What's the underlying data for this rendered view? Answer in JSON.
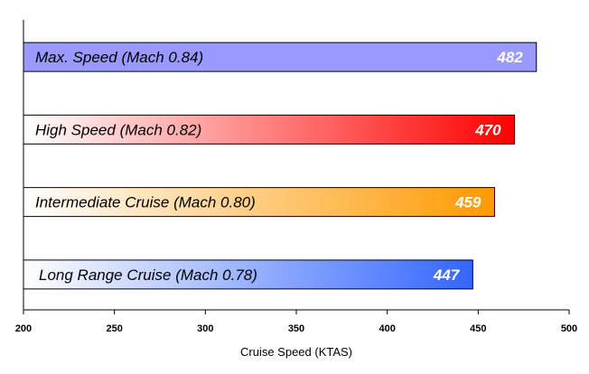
{
  "chart_data": {
    "type": "bar",
    "orientation": "horizontal",
    "categories": [
      "Max. Speed (Mach 0.84)",
      "High Speed (Mach 0.82)",
      "Intermediate Cruise (Mach 0.80)",
      "Long Range Cruise (Mach 0.78)"
    ],
    "values": [
      482,
      470,
      459,
      447
    ],
    "value_labels": [
      "482",
      "470",
      "459",
      "447"
    ],
    "bar_colors": [
      {
        "start": "#9999ff",
        "end": "#9999ff"
      },
      {
        "start": "#ffffff",
        "end": "#ff0000"
      },
      {
        "start": "#ffffff",
        "end": "#ff9900"
      },
      {
        "start": "#ffffff",
        "end": "#3366ff"
      }
    ],
    "title": "",
    "xlabel": "Cruise Speed (KTAS)",
    "ylabel": "",
    "xlim": [
      200,
      500
    ],
    "xticks": [
      200,
      250,
      300,
      350,
      400,
      450,
      500
    ],
    "xtick_labels": [
      "200",
      "250",
      "300",
      "350",
      "400",
      "450",
      "500"
    ],
    "grid": false,
    "legend": "none"
  }
}
